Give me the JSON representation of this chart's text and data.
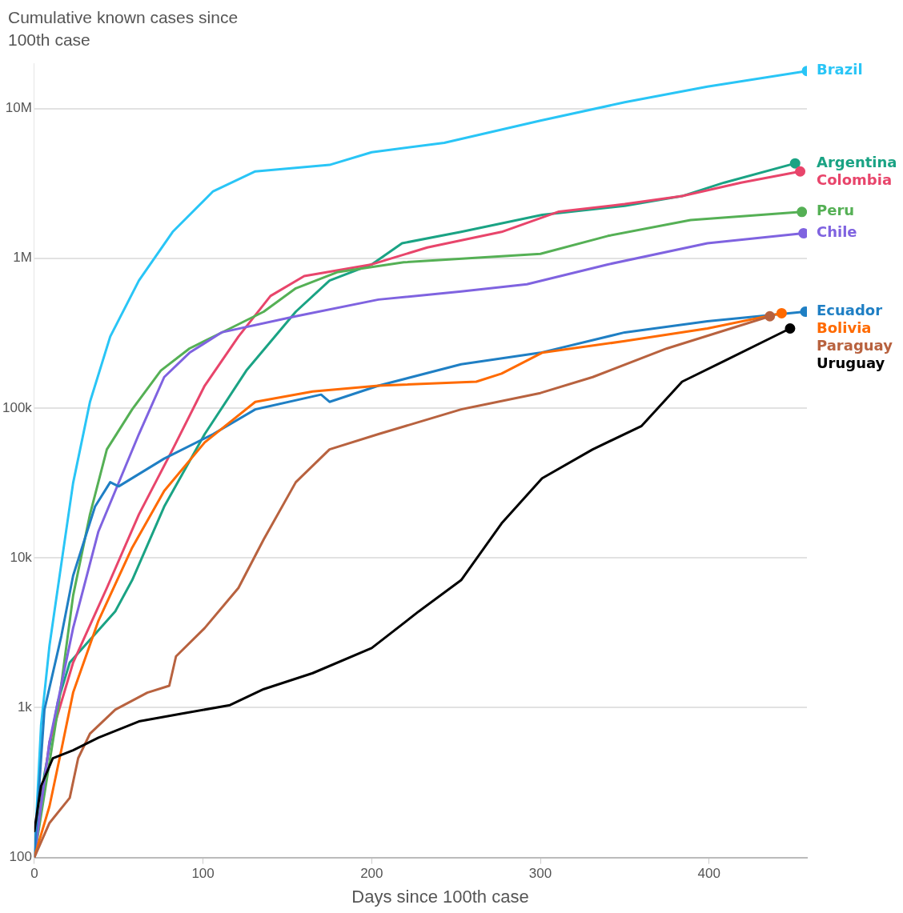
{
  "chart_data": {
    "type": "line",
    "title": "Cumulative known cases since 100th case",
    "xlabel": "Days since 100th case",
    "log": "y",
    "grid": "y",
    "legend": false,
    "xlim": [
      0,
      458
    ],
    "xticks": [
      0,
      100,
      200,
      300,
      400
    ],
    "ylim": [
      100,
      20000000
    ],
    "yticks": [
      100,
      {
        "value": 1000,
        "label": "1k"
      },
      {
        "value": 10000,
        "label": "10k"
      },
      {
        "value": 100000,
        "label": "100k"
      },
      {
        "value": 1000000,
        "label": "1M"
      },
      {
        "value": 10000000,
        "label": "10M"
      }
    ],
    "series": [
      {
        "name": "Brazil",
        "color": "#29c5f6",
        "x": [
          0,
          4,
          9,
          16,
          23,
          33,
          45,
          62,
          82,
          106,
          131,
          175,
          200,
          243,
          300,
          350,
          399,
          458
        ],
        "values": [
          100,
          760,
          2600,
          9100,
          31600,
          110000,
          300000,
          710000,
          1500000,
          2800000,
          3800000,
          4200000,
          5100000,
          5900000,
          8300000,
          11000000,
          14000000,
          17800000
        ]
      },
      {
        "name": "Argentina",
        "color": "#1aa384",
        "x": [
          0,
          6,
          14,
          21,
          48,
          58,
          77,
          101,
          126,
          155,
          175,
          200,
          218,
          253,
          301,
          350,
          384,
          409,
          451
        ],
        "values": [
          100,
          360,
          1100,
          2000,
          4400,
          7100,
          22000,
          67000,
          180000,
          440000,
          710000,
          910000,
          1260000,
          1500000,
          1950000,
          2240000,
          2600000,
          3200000,
          4300000
        ]
      },
      {
        "name": "Colombia",
        "color": "#e8456b",
        "x": [
          0,
          9,
          23,
          43,
          62,
          82,
          101,
          121,
          140,
          160,
          200,
          233,
          277,
          311,
          350,
          384,
          419,
          454
        ],
        "values": [
          100,
          590,
          2000,
          6300,
          19500,
          53000,
          141000,
          300000,
          560000,
          760000,
          910000,
          1180000,
          1500000,
          2050000,
          2300000,
          2600000,
          3200000,
          3800000
        ]
      },
      {
        "name": "Peru",
        "color": "#55b055",
        "x": [
          0,
          14,
          23,
          33,
          43,
          58,
          75,
          92,
          116,
          136,
          155,
          180,
          219,
          300,
          340,
          389,
          455
        ],
        "values": [
          100,
          970,
          5600,
          19500,
          53000,
          98000,
          178000,
          250000,
          340000,
          440000,
          630000,
          810000,
          940000,
          1070000,
          1410000,
          1800000,
          2040000
        ]
      },
      {
        "name": "Chile",
        "color": "#7f63e0",
        "x": [
          0,
          9,
          23,
          38,
          48,
          62,
          77,
          92,
          111,
          155,
          204,
          253,
          292,
          340,
          399,
          456
        ],
        "values": [
          100,
          590,
          3400,
          15000,
          28000,
          67000,
          161000,
          234000,
          320000,
          410000,
          530000,
          600000,
          670000,
          910000,
          1260000,
          1470000
        ]
      },
      {
        "name": "Ecuador",
        "color": "#1f7fc4",
        "x": [
          0,
          6,
          16,
          23,
          36,
          45,
          50,
          77,
          106,
          131,
          170,
          175,
          204,
          253,
          300,
          350,
          399,
          457
        ],
        "values": [
          100,
          970,
          3000,
          7600,
          22000,
          32000,
          30000,
          46000,
          67000,
          98000,
          123000,
          110000,
          141000,
          196000,
          234000,
          320000,
          380000,
          440000
        ]
      },
      {
        "name": "Bolivia",
        "color": "#ff6a00",
        "x": [
          0,
          9,
          16,
          23,
          38,
          58,
          77,
          101,
          131,
          165,
          204,
          262,
          277,
          301,
          350,
          399,
          443
        ],
        "values": [
          100,
          220,
          520,
          1260,
          3800,
          11700,
          28000,
          59000,
          110000,
          129000,
          141000,
          150000,
          170000,
          234000,
          280000,
          340000,
          430000
        ]
      },
      {
        "name": "Paraguay",
        "color": "#b8623f",
        "x": [
          0,
          9,
          21,
          26,
          33,
          48,
          67,
          80,
          84,
          101,
          121,
          136,
          155,
          175,
          204,
          253,
          300,
          331,
          375,
          436
        ],
        "values": [
          100,
          170,
          250,
          460,
          670,
          970,
          1260,
          1400,
          2200,
          3400,
          6300,
          13300,
          32000,
          53000,
          67000,
          98000,
          126000,
          161000,
          250000,
          410000
        ]
      },
      {
        "name": "Uruguay",
        "color": "#000000",
        "x": [
          0,
          4,
          11,
          23,
          38,
          62,
          87,
          116,
          136,
          165,
          200,
          228,
          253,
          277,
          301,
          331,
          360,
          384,
          409,
          448
        ],
        "values": [
          150,
          300,
          460,
          520,
          630,
          810,
          910,
          1040,
          1330,
          1700,
          2500,
          4400,
          7100,
          17000,
          34000,
          53000,
          76000,
          150000,
          206000,
          340000
        ]
      }
    ]
  }
}
